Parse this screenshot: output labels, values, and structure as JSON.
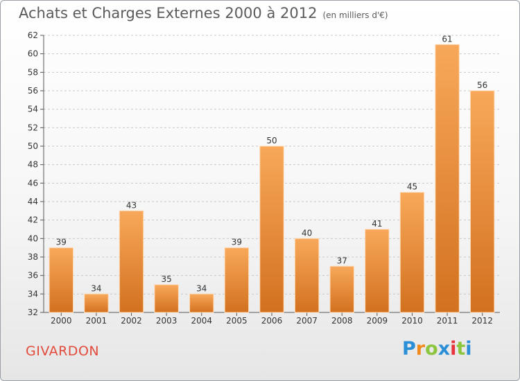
{
  "title": "Achats et Charges Externes 2000 à 2012",
  "subtitle": "(en milliers d'€)",
  "commune": "GIVARDON",
  "logo": {
    "letters": [
      "P",
      "r",
      "o",
      "x",
      "i",
      "t",
      "i"
    ],
    "colors": [
      "#2a8fd6",
      "#f08a1c",
      "#8cc63e",
      "#2a8fd6",
      "#e8323c",
      "#8cc63e",
      "#2a8fd6"
    ]
  },
  "colors": {
    "bar_top": "#f8a85a",
    "bar_bottom": "#d2711f",
    "commune": "#e24b3b",
    "title": "#5a5a5a"
  },
  "chart_data": {
    "type": "bar",
    "title": "Achats et Charges Externes 2000 à 2012",
    "xlabel": "",
    "ylabel": "",
    "ylim": [
      32,
      62
    ],
    "ytick_step": 2,
    "grid": "horizontal-dashed",
    "categories": [
      "2000",
      "2001",
      "2002",
      "2003",
      "2004",
      "2005",
      "2006",
      "2007",
      "2008",
      "2009",
      "2010",
      "2011",
      "2012"
    ],
    "values": [
      39,
      34,
      43,
      35,
      34,
      39,
      50,
      40,
      37,
      41,
      45,
      61,
      56
    ]
  }
}
